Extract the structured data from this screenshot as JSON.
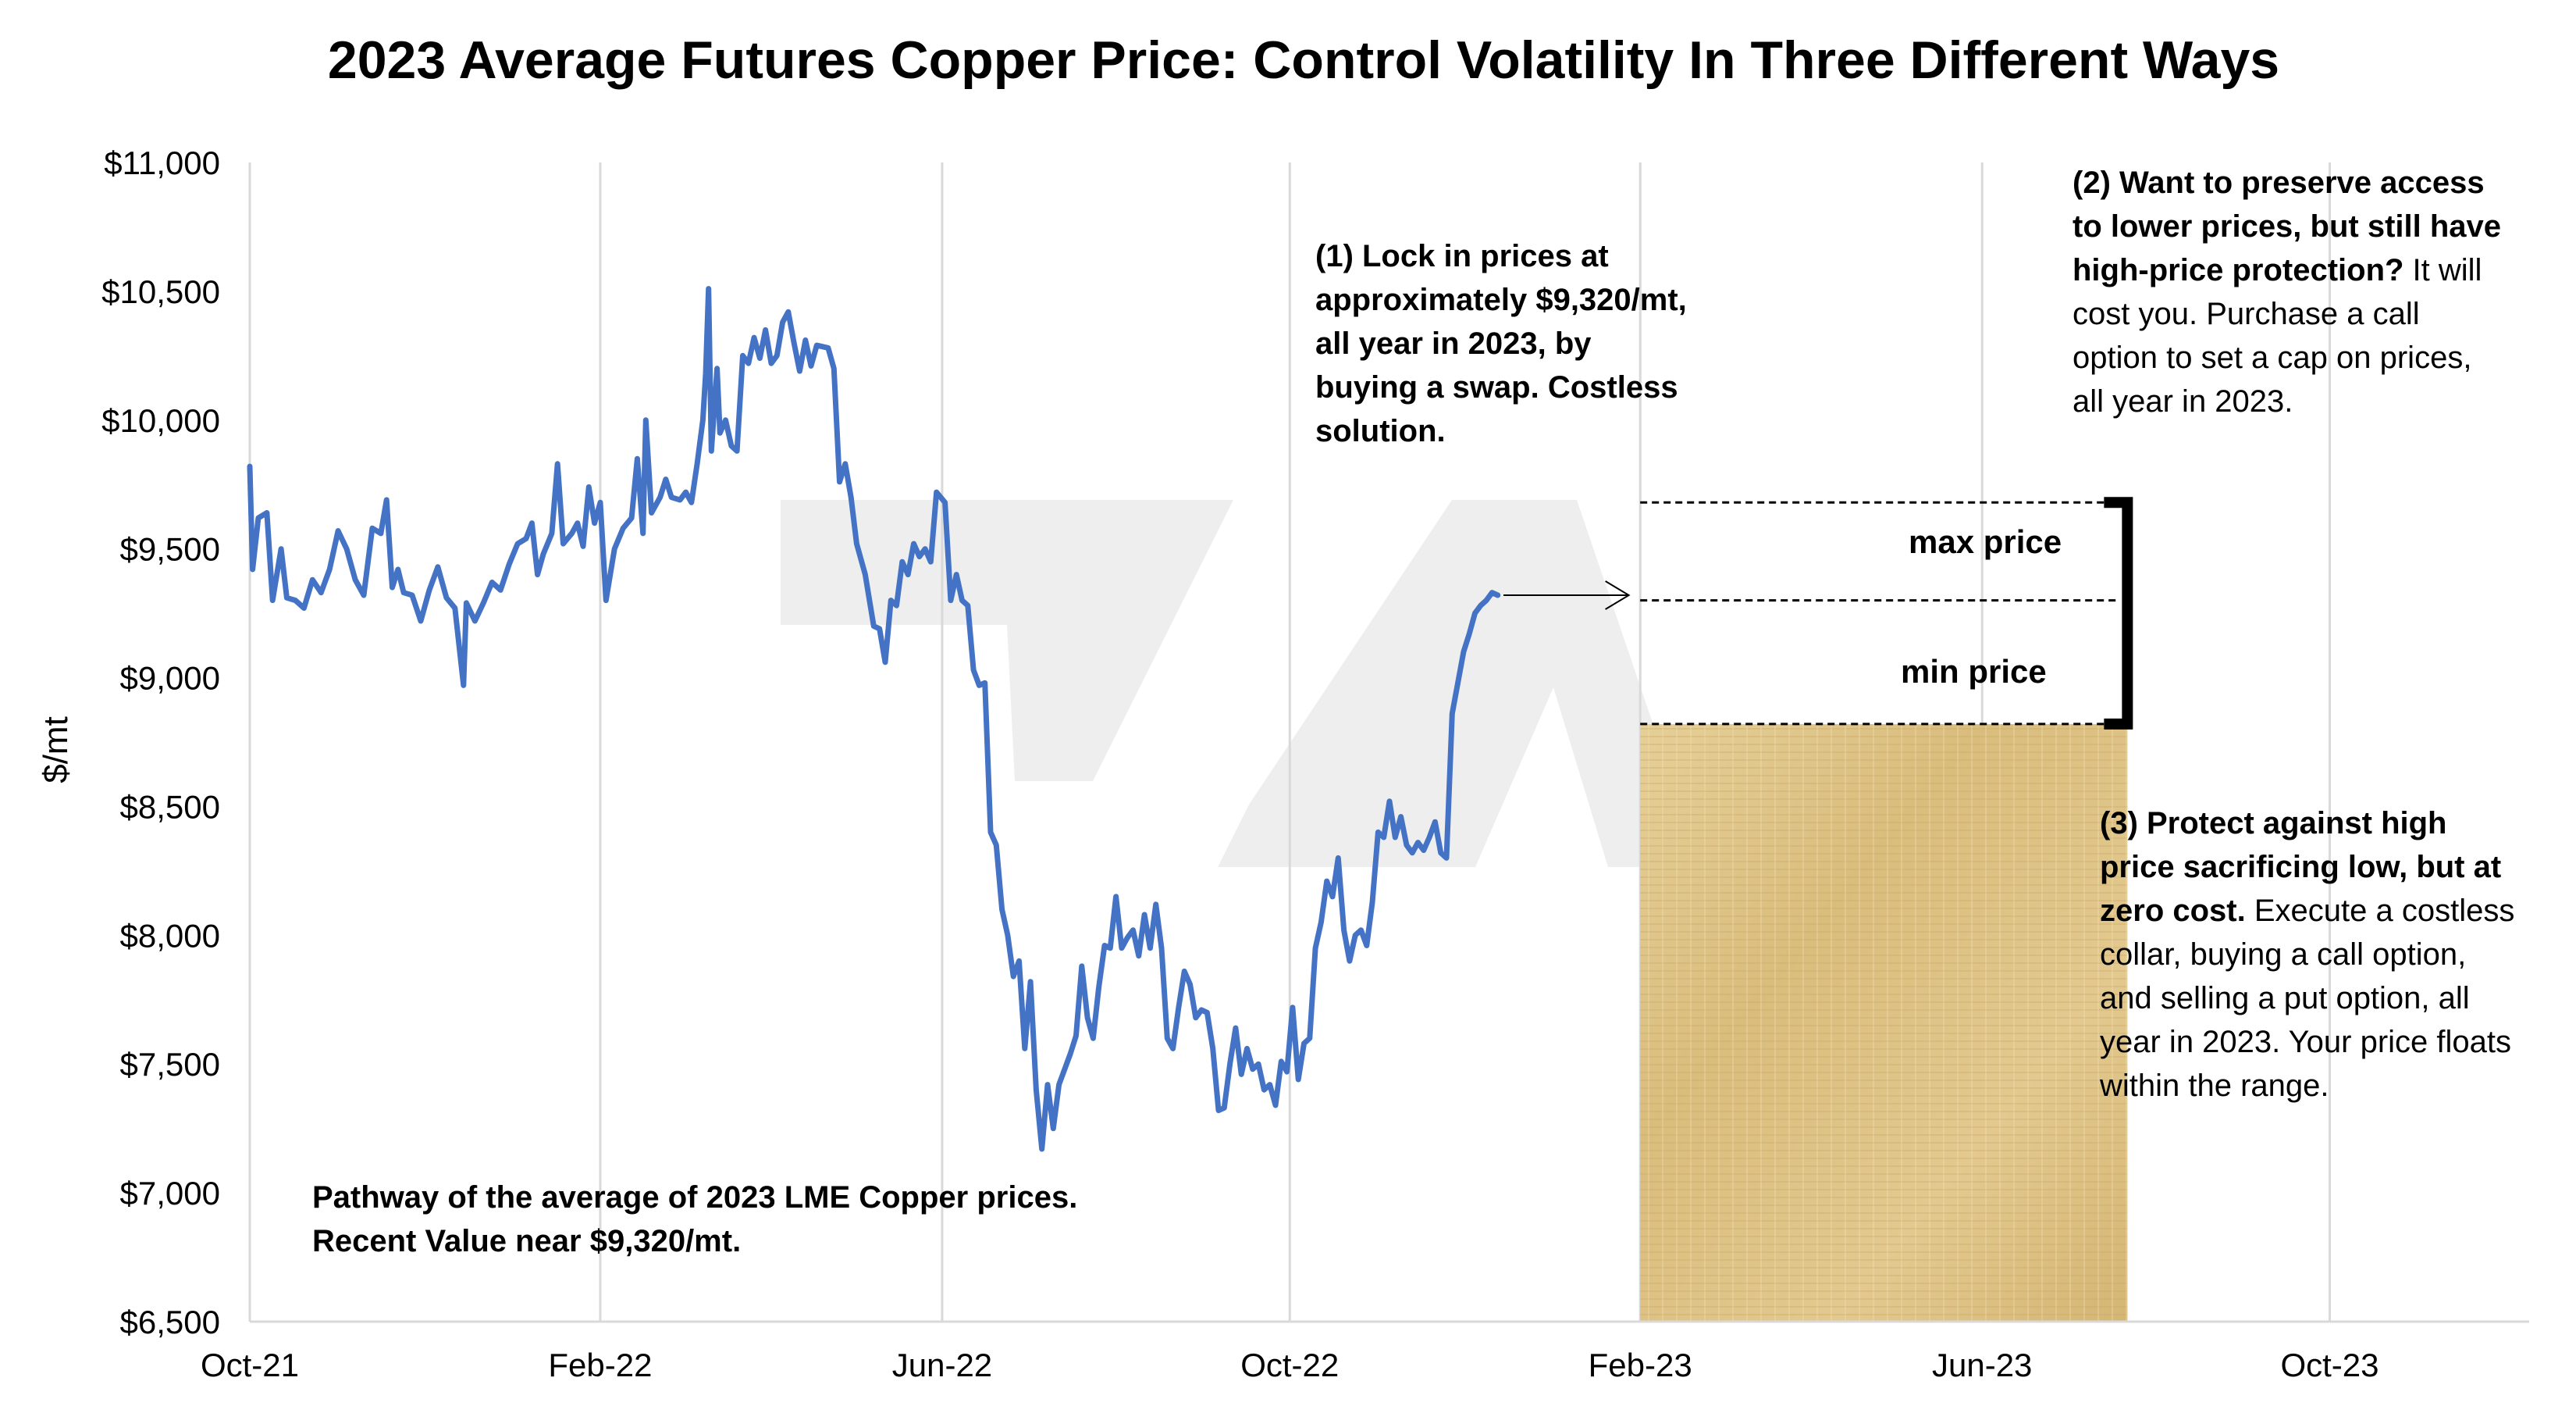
{
  "chart_data": {
    "type": "line",
    "title": "2023 Average Futures Copper Price: Control Volatility In Three Different Ways",
    "ylabel": "$/mt",
    "xlabel": "",
    "ylim": [
      6500,
      11000
    ],
    "y_ticks": [
      6500,
      7000,
      7500,
      8000,
      8500,
      9000,
      9500,
      10000,
      10500,
      11000
    ],
    "y_tick_labels": [
      "$6,500",
      "$7,000",
      "$7,500",
      "$8,000",
      "$8,500",
      "$9,000",
      "$9,500",
      "$10,000",
      "$10,500",
      "$11,000"
    ],
    "x_ticks": [
      "2021-10-01",
      "2022-02-01",
      "2022-06-01",
      "2022-10-01",
      "2023-02-01",
      "2023-06-01",
      "2023-10-01"
    ],
    "x_tick_labels": [
      "Oct-21",
      "Feb-22",
      "Jun-22",
      "Oct-22",
      "Feb-23",
      "Jun-23",
      "Oct-23"
    ],
    "xlim": [
      "2021-10-01",
      "2023-12-10"
    ],
    "grid": "vertical",
    "series": [
      {
        "color": "#4472c4",
        "points": [
          [
            "2021-10-01",
            9820
          ],
          [
            "2021-10-02",
            9420
          ],
          [
            "2021-10-04",
            9620
          ],
          [
            "2021-10-07",
            9640
          ],
          [
            "2021-10-09",
            9300
          ],
          [
            "2021-10-12",
            9500
          ],
          [
            "2021-10-14",
            9310
          ],
          [
            "2021-10-17",
            9300
          ],
          [
            "2021-10-20",
            9270
          ],
          [
            "2021-10-23",
            9380
          ],
          [
            "2021-10-26",
            9330
          ],
          [
            "2021-10-29",
            9420
          ],
          [
            "2021-11-01",
            9570
          ],
          [
            "2021-11-04",
            9500
          ],
          [
            "2021-11-07",
            9380
          ],
          [
            "2021-11-10",
            9320
          ],
          [
            "2021-11-13",
            9580
          ],
          [
            "2021-11-16",
            9560
          ],
          [
            "2021-11-18",
            9690
          ],
          [
            "2021-11-20",
            9350
          ],
          [
            "2021-11-22",
            9420
          ],
          [
            "2021-11-24",
            9330
          ],
          [
            "2021-11-27",
            9320
          ],
          [
            "2021-11-30",
            9220
          ],
          [
            "2021-12-03",
            9340
          ],
          [
            "2021-12-06",
            9430
          ],
          [
            "2021-12-09",
            9310
          ],
          [
            "2021-12-12",
            9270
          ],
          [
            "2021-12-15",
            8970
          ],
          [
            "2021-12-16",
            9290
          ],
          [
            "2021-12-19",
            9220
          ],
          [
            "2021-12-22",
            9290
          ],
          [
            "2021-12-25",
            9370
          ],
          [
            "2021-12-28",
            9340
          ],
          [
            "2021-12-31",
            9440
          ],
          [
            "2022-01-03",
            9520
          ],
          [
            "2022-01-06",
            9540
          ],
          [
            "2022-01-08",
            9600
          ],
          [
            "2022-01-10",
            9400
          ],
          [
            "2022-01-12",
            9480
          ],
          [
            "2022-01-15",
            9560
          ],
          [
            "2022-01-17",
            9830
          ],
          [
            "2022-01-19",
            9520
          ],
          [
            "2022-01-22",
            9560
          ],
          [
            "2022-01-24",
            9600
          ],
          [
            "2022-01-26",
            9510
          ],
          [
            "2022-01-28",
            9740
          ],
          [
            "2022-01-30",
            9600
          ],
          [
            "2022-02-01",
            9680
          ],
          [
            "2022-02-03",
            9300
          ],
          [
            "2022-02-06",
            9500
          ],
          [
            "2022-02-09",
            9580
          ],
          [
            "2022-02-12",
            9620
          ],
          [
            "2022-02-14",
            9850
          ],
          [
            "2022-02-16",
            9560
          ],
          [
            "2022-02-17",
            10000
          ],
          [
            "2022-02-19",
            9640
          ],
          [
            "2022-02-22",
            9700
          ],
          [
            "2022-02-24",
            9770
          ],
          [
            "2022-02-26",
            9700
          ],
          [
            "2022-03-01",
            9690
          ],
          [
            "2022-03-03",
            9720
          ],
          [
            "2022-03-05",
            9680
          ],
          [
            "2022-03-07",
            9830
          ],
          [
            "2022-03-09",
            10000
          ],
          [
            "2022-03-10",
            10180
          ],
          [
            "2022-03-11",
            10510
          ],
          [
            "2022-03-12",
            9880
          ],
          [
            "2022-03-14",
            10200
          ],
          [
            "2022-03-15",
            9950
          ],
          [
            "2022-03-17",
            10000
          ],
          [
            "2022-03-19",
            9900
          ],
          [
            "2022-03-21",
            9880
          ],
          [
            "2022-03-23",
            10250
          ],
          [
            "2022-03-25",
            10220
          ],
          [
            "2022-03-27",
            10320
          ],
          [
            "2022-03-29",
            10240
          ],
          [
            "2022-03-31",
            10350
          ],
          [
            "2022-04-02",
            10220
          ],
          [
            "2022-04-04",
            10250
          ],
          [
            "2022-04-06",
            10380
          ],
          [
            "2022-04-08",
            10420
          ],
          [
            "2022-04-10",
            10300
          ],
          [
            "2022-04-12",
            10190
          ],
          [
            "2022-04-14",
            10310
          ],
          [
            "2022-04-16",
            10210
          ],
          [
            "2022-04-18",
            10290
          ],
          [
            "2022-04-22",
            10280
          ],
          [
            "2022-04-24",
            10200
          ],
          [
            "2022-04-26",
            9760
          ],
          [
            "2022-04-28",
            9830
          ],
          [
            "2022-04-30",
            9700
          ],
          [
            "2022-05-02",
            9520
          ],
          [
            "2022-05-05",
            9400
          ],
          [
            "2022-05-08",
            9200
          ],
          [
            "2022-05-10",
            9190
          ],
          [
            "2022-05-12",
            9060
          ],
          [
            "2022-05-14",
            9300
          ],
          [
            "2022-05-16",
            9280
          ],
          [
            "2022-05-18",
            9450
          ],
          [
            "2022-05-20",
            9400
          ],
          [
            "2022-05-22",
            9520
          ],
          [
            "2022-05-24",
            9470
          ],
          [
            "2022-05-26",
            9500
          ],
          [
            "2022-05-28",
            9450
          ],
          [
            "2022-05-30",
            9720
          ],
          [
            "2022-06-02",
            9680
          ],
          [
            "2022-06-04",
            9300
          ],
          [
            "2022-06-06",
            9400
          ],
          [
            "2022-06-08",
            9300
          ],
          [
            "2022-06-10",
            9280
          ],
          [
            "2022-06-12",
            9030
          ],
          [
            "2022-06-14",
            8970
          ],
          [
            "2022-06-16",
            8980
          ],
          [
            "2022-06-18",
            8400
          ],
          [
            "2022-06-20",
            8350
          ],
          [
            "2022-06-22",
            8100
          ],
          [
            "2022-06-24",
            8000
          ],
          [
            "2022-06-26",
            7840
          ],
          [
            "2022-06-28",
            7900
          ],
          [
            "2022-06-30",
            7560
          ],
          [
            "2022-07-02",
            7820
          ],
          [
            "2022-07-04",
            7400
          ],
          [
            "2022-07-06",
            7170
          ],
          [
            "2022-07-08",
            7420
          ],
          [
            "2022-07-10",
            7250
          ],
          [
            "2022-07-12",
            7420
          ],
          [
            "2022-07-14",
            7480
          ],
          [
            "2022-07-16",
            7540
          ],
          [
            "2022-07-18",
            7610
          ],
          [
            "2022-07-20",
            7880
          ],
          [
            "2022-07-22",
            7680
          ],
          [
            "2022-07-24",
            7600
          ],
          [
            "2022-07-26",
            7800
          ],
          [
            "2022-07-28",
            7960
          ],
          [
            "2022-07-30",
            7950
          ],
          [
            "2022-08-01",
            8150
          ],
          [
            "2022-08-03",
            7950
          ],
          [
            "2022-08-05",
            7990
          ],
          [
            "2022-08-07",
            8020
          ],
          [
            "2022-08-09",
            7920
          ],
          [
            "2022-08-11",
            8080
          ],
          [
            "2022-08-13",
            7950
          ],
          [
            "2022-08-15",
            8120
          ],
          [
            "2022-08-17",
            7950
          ],
          [
            "2022-08-19",
            7600
          ],
          [
            "2022-08-21",
            7560
          ],
          [
            "2022-08-23",
            7720
          ],
          [
            "2022-08-25",
            7860
          ],
          [
            "2022-08-27",
            7810
          ],
          [
            "2022-08-29",
            7680
          ],
          [
            "2022-08-31",
            7710
          ],
          [
            "2022-09-02",
            7700
          ],
          [
            "2022-09-04",
            7560
          ],
          [
            "2022-09-06",
            7320
          ],
          [
            "2022-09-08",
            7330
          ],
          [
            "2022-09-10",
            7500
          ],
          [
            "2022-09-12",
            7640
          ],
          [
            "2022-09-14",
            7460
          ],
          [
            "2022-09-16",
            7560
          ],
          [
            "2022-09-18",
            7480
          ],
          [
            "2022-09-20",
            7500
          ],
          [
            "2022-09-22",
            7400
          ],
          [
            "2022-09-24",
            7420
          ],
          [
            "2022-09-26",
            7340
          ],
          [
            "2022-09-28",
            7510
          ],
          [
            "2022-09-30",
            7470
          ],
          [
            "2022-10-02",
            7720
          ],
          [
            "2022-10-04",
            7440
          ],
          [
            "2022-10-06",
            7580
          ],
          [
            "2022-10-08",
            7600
          ],
          [
            "2022-10-10",
            7950
          ],
          [
            "2022-10-12",
            8050
          ],
          [
            "2022-10-14",
            8210
          ],
          [
            "2022-10-16",
            8150
          ],
          [
            "2022-10-18",
            8300
          ],
          [
            "2022-10-20",
            8020
          ],
          [
            "2022-10-22",
            7900
          ],
          [
            "2022-10-24",
            8000
          ],
          [
            "2022-10-26",
            8020
          ],
          [
            "2022-10-28",
            7960
          ],
          [
            "2022-10-30",
            8130
          ],
          [
            "2022-11-01",
            8400
          ],
          [
            "2022-11-03",
            8380
          ],
          [
            "2022-11-05",
            8520
          ],
          [
            "2022-11-07",
            8380
          ],
          [
            "2022-11-09",
            8460
          ],
          [
            "2022-11-11",
            8350
          ],
          [
            "2022-11-13",
            8320
          ],
          [
            "2022-11-15",
            8360
          ],
          [
            "2022-11-17",
            8330
          ],
          [
            "2022-11-19",
            8380
          ],
          [
            "2022-11-21",
            8440
          ],
          [
            "2022-11-23",
            8320
          ],
          [
            "2022-11-25",
            8300
          ],
          [
            "2022-11-27",
            8860
          ],
          [
            "2022-11-29",
            8980
          ],
          [
            "2022-12-01",
            9100
          ],
          [
            "2022-12-03",
            9170
          ],
          [
            "2022-12-05",
            9250
          ],
          [
            "2022-12-07",
            9280
          ],
          [
            "2022-12-09",
            9300
          ],
          [
            "2022-12-11",
            9330
          ],
          [
            "2022-12-13",
            9320
          ]
        ]
      }
    ],
    "arrow": {
      "from": "2022-12-15",
      "to": "2023-01-28",
      "value": 9320
    },
    "hedge_lines": [
      {
        "value": 9680,
        "to": "2023-07-18"
      },
      {
        "value": 9300,
        "to": "2023-07-18"
      },
      {
        "value": 8820,
        "to": "2023-07-18"
      }
    ],
    "hedge_bracket": {
      "x": "2023-07-22",
      "from": 9680,
      "to": 8820
    },
    "collar_region": {
      "from": "2023-02-01",
      "to": "2023-07-22",
      "min": 6500,
      "max": 8820
    },
    "labels": {
      "max": "max price",
      "min": "min price"
    }
  },
  "annotations": {
    "lock": "(1) Lock in prices at approximately $9,320/mt, all year in 2023, by buying a swap. Costless solution.",
    "call_bold": "(2) Want to preserve access to lower prices, but still have high-price protection?",
    "call_rest": " It will cost you. Purchase a call option to set a cap on prices, all year in 2023.",
    "collar_bold": "(3) Protect against high price sacrificing low, but at zero cost.",
    "collar_rest": " Execute a costless collar, buying a call option, and selling a put option, all year in 2023. Your price floats within the range.",
    "path": "Pathway of the average of 2023 LME Copper prices.  Recent Value near $9,320/mt."
  },
  "colors": {
    "line": "#4472c4",
    "grid": "#d9d9d9",
    "watermark": "#eeeeee",
    "collar_fill": "#ddc387"
  }
}
